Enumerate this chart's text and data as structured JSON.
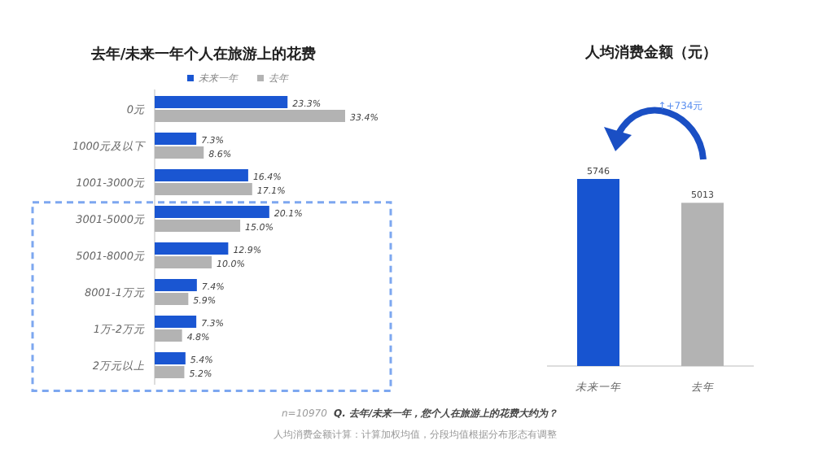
{
  "chart_data": [
    {
      "type": "bar",
      "orientation": "horizontal",
      "title": "去年/未来一年个人在旅游上的花费",
      "legend": "top",
      "categories": [
        "0元",
        "1000元及以下",
        "1001-3000元",
        "3001-5000元",
        "5001-8000元",
        "8001-1万元",
        "1万-2万元",
        "2万元以上"
      ],
      "series": [
        {
          "name": "未来一年",
          "color": "#1a56d2",
          "values": [
            23.3,
            7.3,
            16.4,
            20.1,
            12.9,
            7.4,
            7.3,
            5.4
          ],
          "value_labels": [
            "23.3%",
            "7.3%",
            "16.4%",
            "20.1%",
            "12.9%",
            "7.4%",
            "7.3%",
            "5.4%"
          ]
        },
        {
          "name": "去年",
          "color": "#b3b3b3",
          "values": [
            33.4,
            8.6,
            17.1,
            15.0,
            10.0,
            5.9,
            4.8,
            5.2
          ],
          "value_labels": [
            "33.4%",
            "8.6%",
            "17.1%",
            "15.0%",
            "10.0%",
            "5.9%",
            "4.8%",
            "5.2%"
          ]
        }
      ],
      "annotations": [
        "n=10970",
        "Q. 去年/未来一年，您个人在旅游上的花费大约为？",
        "人均消费金额计算：计算加权均值，分段均值根据分布形态有调整"
      ]
    },
    {
      "type": "bar",
      "title": "人均消费金额（元）",
      "categories": [
        "未来一年",
        "去年"
      ],
      "values": [
        5746,
        5013
      ],
      "colors": [
        "#1754d0",
        "#b3b3b3"
      ],
      "data_labels": true,
      "annotations": [
        "↑+734元"
      ]
    }
  ]
}
